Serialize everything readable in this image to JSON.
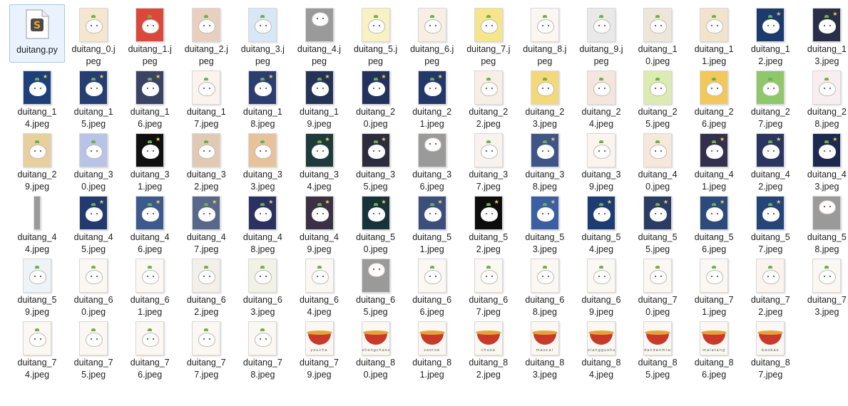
{
  "files": [
    {
      "name": "duitang.py",
      "line1": "duitang.py",
      "line2": "",
      "kind": "python",
      "selected": true,
      "bg": "#ffffff",
      "icon": "python-script-icon"
    },
    {
      "name": "duitang_0.jpeg",
      "line1": "duitang_0.j",
      "line2": "peg",
      "kind": "char",
      "bg": "#f4e6cf"
    },
    {
      "name": "duitang_1.jpeg",
      "line1": "duitang_1.j",
      "line2": "peg",
      "kind": "char",
      "bg": "#d9483b"
    },
    {
      "name": "duitang_2.jpeg",
      "line1": "duitang_2.j",
      "line2": "peg",
      "kind": "char",
      "bg": "#e8cfc0"
    },
    {
      "name": "duitang_3.jpeg",
      "line1": "duitang_3.j",
      "line2": "peg",
      "kind": "char",
      "bg": "#d7e7f5"
    },
    {
      "name": "duitang_4.jpeg",
      "line1": "duitang_4.j",
      "line2": "peg",
      "kind": "gray",
      "bg": "#8c8c8c"
    },
    {
      "name": "duitang_5.jpeg",
      "line1": "duitang_5.j",
      "line2": "peg",
      "kind": "char",
      "bg": "#f7f1c4"
    },
    {
      "name": "duitang_6.jpeg",
      "line1": "duitang_6.j",
      "line2": "peg",
      "kind": "char",
      "bg": "#f7efe4"
    },
    {
      "name": "duitang_7.jpeg",
      "line1": "duitang_7.j",
      "line2": "peg",
      "kind": "char",
      "bg": "#f6e58a"
    },
    {
      "name": "duitang_8.jpeg",
      "line1": "duitang_8.j",
      "line2": "peg",
      "kind": "char",
      "bg": "#fbf6f1"
    },
    {
      "name": "duitang_9.jpeg",
      "line1": "duitang_9.j",
      "line2": "peg",
      "kind": "char",
      "bg": "#e9e9e9"
    },
    {
      "name": "duitang_10.jpeg",
      "line1": "duitang_1",
      "line2": "0.jpeg",
      "kind": "char",
      "bg": "#efe6da"
    },
    {
      "name": "duitang_11.jpeg",
      "line1": "duitang_1",
      "line2": "1.jpeg",
      "kind": "char",
      "bg": "#f1e3cc"
    },
    {
      "name": "duitang_12.jpeg",
      "line1": "duitang_1",
      "line2": "2.jpeg",
      "kind": "dark",
      "bg": "#1c3a6b"
    },
    {
      "name": "duitang_13.jpeg",
      "line1": "duitang_1",
      "line2": "3.jpeg",
      "kind": "dark",
      "bg": "#2a2f48"
    },
    {
      "name": "duitang_14.jpeg",
      "line1": "duitang_1",
      "line2": "4.jpeg",
      "kind": "dark",
      "bg": "#1d3f7a"
    },
    {
      "name": "duitang_15.jpeg",
      "line1": "duitang_1",
      "line2": "5.jpeg",
      "kind": "dark",
      "bg": "#253e73"
    },
    {
      "name": "duitang_16.jpeg",
      "line1": "duitang_1",
      "line2": "6.jpeg",
      "kind": "dark",
      "bg": "#3b4365"
    },
    {
      "name": "duitang_17.jpeg",
      "line1": "duitang_1",
      "line2": "7.jpeg",
      "kind": "char",
      "bg": "#faf3ee"
    },
    {
      "name": "duitang_18.jpeg",
      "line1": "duitang_1",
      "line2": "8.jpeg",
      "kind": "dark",
      "bg": "#2c3d70"
    },
    {
      "name": "duitang_19.jpeg",
      "line1": "duitang_1",
      "line2": "9.jpeg",
      "kind": "dark",
      "bg": "#253356"
    },
    {
      "name": "duitang_20.jpeg",
      "line1": "duitang_2",
      "line2": "0.jpeg",
      "kind": "dark",
      "bg": "#23325c"
    },
    {
      "name": "duitang_21.jpeg",
      "line1": "duitang_2",
      "line2": "1.jpeg",
      "kind": "dark",
      "bg": "#22386a"
    },
    {
      "name": "duitang_22.jpeg",
      "line1": "duitang_2",
      "line2": "2.jpeg",
      "kind": "char",
      "bg": "#f7efe6"
    },
    {
      "name": "duitang_23.jpeg",
      "line1": "duitang_2",
      "line2": "3.jpeg",
      "kind": "char",
      "bg": "#f3d97a"
    },
    {
      "name": "duitang_24.jpeg",
      "line1": "duitang_2",
      "line2": "4.jpeg",
      "kind": "char",
      "bg": "#f4e6dc"
    },
    {
      "name": "duitang_25.jpeg",
      "line1": "duitang_2",
      "line2": "5.jpeg",
      "kind": "char",
      "bg": "#dcebb0"
    },
    {
      "name": "duitang_26.jpeg",
      "line1": "duitang_2",
      "line2": "6.jpeg",
      "kind": "char",
      "bg": "#f2c85a"
    },
    {
      "name": "duitang_27.jpeg",
      "line1": "duitang_2",
      "line2": "7.jpeg",
      "kind": "char",
      "bg": "#8fc86a"
    },
    {
      "name": "duitang_28.jpeg",
      "line1": "duitang_2",
      "line2": "8.jpeg",
      "kind": "char",
      "bg": "#f8eef0"
    },
    {
      "name": "duitang_29.jpeg",
      "line1": "duitang_2",
      "line2": "9.jpeg",
      "kind": "char",
      "bg": "#e8cf9e"
    },
    {
      "name": "duitang_30.jpeg",
      "line1": "duitang_3",
      "line2": "0.jpeg",
      "kind": "char",
      "bg": "#b9c3e8"
    },
    {
      "name": "duitang_31.jpeg",
      "line1": "duitang_3",
      "line2": "1.jpeg",
      "kind": "dark",
      "bg": "#101010"
    },
    {
      "name": "duitang_32.jpeg",
      "line1": "duitang_3",
      "line2": "2.jpeg",
      "kind": "char",
      "bg": "#e2c9b4"
    },
    {
      "name": "duitang_33.jpeg",
      "line1": "duitang_3",
      "line2": "3.jpeg",
      "kind": "char",
      "bg": "#e8c29b"
    },
    {
      "name": "duitang_34.jpeg",
      "line1": "duitang_3",
      "line2": "4.jpeg",
      "kind": "dark",
      "bg": "#1f3a3a"
    },
    {
      "name": "duitang_35.jpeg",
      "line1": "duitang_3",
      "line2": "5.jpeg",
      "kind": "dark",
      "bg": "#2b2d3f"
    },
    {
      "name": "duitang_36.jpeg",
      "line1": "duitang_3",
      "line2": "6.jpeg",
      "kind": "gray",
      "bg": "#8c8c8c"
    },
    {
      "name": "duitang_37.jpeg",
      "line1": "duitang_3",
      "line2": "7.jpeg",
      "kind": "char",
      "bg": "#f8f3ee"
    },
    {
      "name": "duitang_38.jpeg",
      "line1": "duitang_3",
      "line2": "8.jpeg",
      "kind": "dark",
      "bg": "#3f5587"
    },
    {
      "name": "duitang_39.jpeg",
      "line1": "duitang_3",
      "line2": "9.jpeg",
      "kind": "char",
      "bg": "#fbf4ef"
    },
    {
      "name": "duitang_40.jpeg",
      "line1": "duitang_4",
      "line2": "0.jpeg",
      "kind": "char",
      "bg": "#f7e8dc"
    },
    {
      "name": "duitang_41.jpeg",
      "line1": "duitang_4",
      "line2": "1.jpeg",
      "kind": "dark",
      "bg": "#33304d"
    },
    {
      "name": "duitang_42.jpeg",
      "line1": "duitang_4",
      "line2": "2.jpeg",
      "kind": "dark",
      "bg": "#2b3562"
    },
    {
      "name": "duitang_43.jpeg",
      "line1": "duitang_4",
      "line2": "3.jpeg",
      "kind": "dark",
      "bg": "#1b2a4e"
    },
    {
      "name": "duitang_44.jpeg",
      "line1": "duitang_4",
      "line2": "4.jpeg",
      "kind": "gray",
      "bg": "#8c8c8c",
      "narrow": true
    },
    {
      "name": "duitang_45.jpeg",
      "line1": "duitang_4",
      "line2": "5.jpeg",
      "kind": "dark",
      "bg": "#233a6e"
    },
    {
      "name": "duitang_46.jpeg",
      "line1": "duitang_4",
      "line2": "6.jpeg",
      "kind": "dark",
      "bg": "#3d5a8e"
    },
    {
      "name": "duitang_47.jpeg",
      "line1": "duitang_4",
      "line2": "7.jpeg",
      "kind": "dark",
      "bg": "#59678b"
    },
    {
      "name": "duitang_48.jpeg",
      "line1": "duitang_4",
      "line2": "8.jpeg",
      "kind": "dark",
      "bg": "#2b3160"
    },
    {
      "name": "duitang_49.jpeg",
      "line1": "duitang_4",
      "line2": "9.jpeg",
      "kind": "dark",
      "bg": "#3b3044"
    },
    {
      "name": "duitang_50.jpeg",
      "line1": "duitang_5",
      "line2": "0.jpeg",
      "kind": "dark",
      "bg": "#18323a"
    },
    {
      "name": "duitang_51.jpeg",
      "line1": "duitang_5",
      "line2": "1.jpeg",
      "kind": "dark",
      "bg": "#3c4e7c"
    },
    {
      "name": "duitang_52.jpeg",
      "line1": "duitang_5",
      "line2": "2.jpeg",
      "kind": "dark",
      "bg": "#0d0d0d"
    },
    {
      "name": "duitang_53.jpeg",
      "line1": "duitang_5",
      "line2": "3.jpeg",
      "kind": "dark",
      "bg": "#3a5fa3"
    },
    {
      "name": "duitang_54.jpeg",
      "line1": "duitang_5",
      "line2": "4.jpeg",
      "kind": "dark",
      "bg": "#1d3d72"
    },
    {
      "name": "duitang_55.jpeg",
      "line1": "duitang_5",
      "line2": "5.jpeg",
      "kind": "dark",
      "bg": "#2a3b64"
    },
    {
      "name": "duitang_56.jpeg",
      "line1": "duitang_5",
      "line2": "6.jpeg",
      "kind": "dark",
      "bg": "#2c4a7a"
    },
    {
      "name": "duitang_57.jpeg",
      "line1": "duitang_5",
      "line2": "7.jpeg",
      "kind": "dark",
      "bg": "#244579"
    },
    {
      "name": "duitang_58.jpeg",
      "line1": "duitang_5",
      "line2": "8.jpeg",
      "kind": "gray",
      "bg": "#8c8c8c"
    },
    {
      "name": "duitang_59.jpeg",
      "line1": "duitang_5",
      "line2": "9.jpeg",
      "kind": "char",
      "bg": "#eef3f8"
    },
    {
      "name": "duitang_60.jpeg",
      "line1": "duitang_6",
      "line2": "0.jpeg",
      "kind": "char",
      "bg": "#fbf7f3"
    },
    {
      "name": "duitang_61.jpeg",
      "line1": "duitang_6",
      "line2": "1.jpeg",
      "kind": "char",
      "bg": "#fbf7f3"
    },
    {
      "name": "duitang_62.jpeg",
      "line1": "duitang_6",
      "line2": "2.jpeg",
      "kind": "char",
      "bg": "#f3efe9"
    },
    {
      "name": "duitang_63.jpeg",
      "line1": "duitang_6",
      "line2": "3.jpeg",
      "kind": "char",
      "bg": "#f0f2e6"
    },
    {
      "name": "duitang_64.jpeg",
      "line1": "duitang_6",
      "line2": "4.jpeg",
      "kind": "char",
      "bg": "#fbf7f3"
    },
    {
      "name": "duitang_65.jpeg",
      "line1": "duitang_6",
      "line2": "5.jpeg",
      "kind": "gray",
      "bg": "#8c8c8c"
    },
    {
      "name": "duitang_66.jpeg",
      "line1": "duitang_6",
      "line2": "6.jpeg",
      "kind": "char",
      "bg": "#fbf7f3"
    },
    {
      "name": "duitang_67.jpeg",
      "line1": "duitang_6",
      "line2": "7.jpeg",
      "kind": "char",
      "bg": "#fbf7f3"
    },
    {
      "name": "duitang_68.jpeg",
      "line1": "duitang_6",
      "line2": "8.jpeg",
      "kind": "char",
      "bg": "#fbf7f3"
    },
    {
      "name": "duitang_69.jpeg",
      "line1": "duitang_6",
      "line2": "9.jpeg",
      "kind": "char",
      "bg": "#fbf7f3"
    },
    {
      "name": "duitang_70.jpeg",
      "line1": "duitang_7",
      "line2": "0.jpeg",
      "kind": "char",
      "bg": "#fbf7f3"
    },
    {
      "name": "duitang_71.jpeg",
      "line1": "duitang_7",
      "line2": "1.jpeg",
      "kind": "char",
      "bg": "#fbf7f3"
    },
    {
      "name": "duitang_72.jpeg",
      "line1": "duitang_7",
      "line2": "2.jpeg",
      "kind": "char",
      "bg": "#faf3ee"
    },
    {
      "name": "duitang_73.jpeg",
      "line1": "duitang_7",
      "line2": "3.jpeg",
      "kind": "char",
      "bg": "#fbf7f3"
    },
    {
      "name": "duitang_74.jpeg",
      "line1": "duitang_7",
      "line2": "4.jpeg",
      "kind": "char",
      "bg": "#fbf7f3"
    },
    {
      "name": "duitang_75.jpeg",
      "line1": "duitang_7",
      "line2": "5.jpeg",
      "kind": "char",
      "bg": "#fbf7f3"
    },
    {
      "name": "duitang_76.jpeg",
      "line1": "duitang_7",
      "line2": "6.jpeg",
      "kind": "char",
      "bg": "#fbf7f3"
    },
    {
      "name": "duitang_77.jpeg",
      "line1": "duitang_7",
      "line2": "7.jpeg",
      "kind": "char",
      "bg": "#fbf7f3"
    },
    {
      "name": "duitang_78.jpeg",
      "line1": "duitang_7",
      "line2": "8.jpeg",
      "kind": "char",
      "bg": "#fbf7f3"
    },
    {
      "name": "duitang_79.jpeg",
      "line1": "duitang_7",
      "line2": "9.jpeg",
      "kind": "food",
      "bg": "#fbf8f4",
      "caption": "youcha"
    },
    {
      "name": "duitang_80.jpeg",
      "line1": "duitang_8",
      "line2": "0.jpeg",
      "kind": "food",
      "bg": "#fbf8f4",
      "caption": "zhongchaoze"
    },
    {
      "name": "duitang_81.jpeg",
      "line1": "duitang_8",
      "line2": "1.jpeg",
      "kind": "food",
      "bg": "#fbf8f4",
      "caption": "zaoroe"
    },
    {
      "name": "duitang_82.jpeg",
      "line1": "duitang_8",
      "line2": "2.jpeg",
      "kind": "food",
      "bg": "#fbf8f4",
      "caption": "chuoe"
    },
    {
      "name": "duitang_83.jpeg",
      "line1": "duitang_8",
      "line2": "3.jpeg",
      "kind": "food",
      "bg": "#fbf8f4",
      "caption": "maocai"
    },
    {
      "name": "duitang_84.jpeg",
      "line1": "duitang_8",
      "line2": "4.jpeg",
      "kind": "food",
      "bg": "#fbf8f4",
      "caption": "xiangguohuozu"
    },
    {
      "name": "duitang_85.jpeg",
      "line1": "duitang_8",
      "line2": "5.jpeg",
      "kind": "food",
      "bg": "#fbf8f4",
      "caption": "dandanmian"
    },
    {
      "name": "duitang_86.jpeg",
      "line1": "duitang_8",
      "line2": "6.jpeg",
      "kind": "food",
      "bg": "#fbf8f4",
      "caption": "malatang"
    },
    {
      "name": "duitang_87.jpeg",
      "line1": "duitang_8",
      "line2": "7.jpeg",
      "kind": "food",
      "bg": "#fbf8f4",
      "caption": "baobao"
    }
  ]
}
